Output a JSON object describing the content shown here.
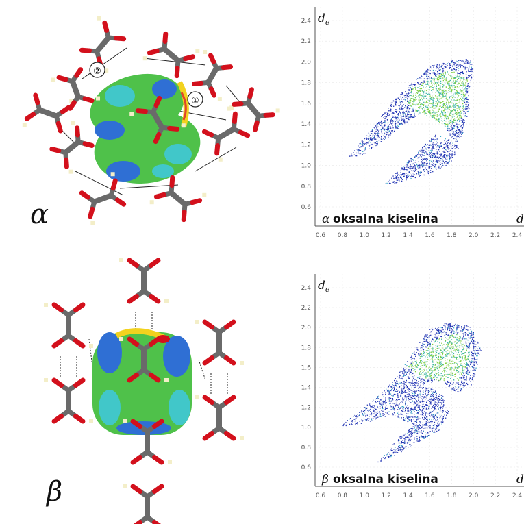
{
  "panels": [
    {
      "greek_label": "α",
      "plot_caption": "oksalna kiselina",
      "plot_greek": "α",
      "y_axis_label": "de",
      "x_axis_label": "d",
      "y_ticks": [
        "2.4",
        "2.2",
        "2.0",
        "1.8",
        "1.6",
        "1.4",
        "1.2",
        "1.0",
        "0.8",
        "0.6"
      ],
      "x_ticks": [
        "0.6",
        "0.8",
        "1.0",
        "1.2",
        "1.4",
        "1.6",
        "1.8",
        "2.0",
        "2.2",
        "2.4"
      ],
      "contact_labels": [
        "②",
        "①"
      ]
    },
    {
      "greek_label": "β",
      "plot_caption": "oksalna kiselina",
      "plot_greek": "β",
      "y_axis_label": "de",
      "x_axis_label": "d",
      "y_ticks": [
        "2.4",
        "2.2",
        "2.0",
        "1.8",
        "1.6",
        "1.4",
        "1.2",
        "1.0",
        "0.8",
        "0.6"
      ],
      "x_ticks": [
        "0.6",
        "0.8",
        "1.0",
        "1.2",
        "1.4",
        "1.6",
        "1.8",
        "2.0",
        "2.2",
        "2.4"
      ]
    }
  ],
  "colors": {
    "oxygen": "#d3101c",
    "carbon": "#6a6a6a",
    "hydrogen": "#f3eec8",
    "surface_green": "#4fc14a",
    "surface_blue": "#2f6fd4",
    "surface_cyan": "#41c7c9",
    "fingerprint_blue": "#2436b4",
    "fingerprint_green": "#7fcf3e"
  }
}
